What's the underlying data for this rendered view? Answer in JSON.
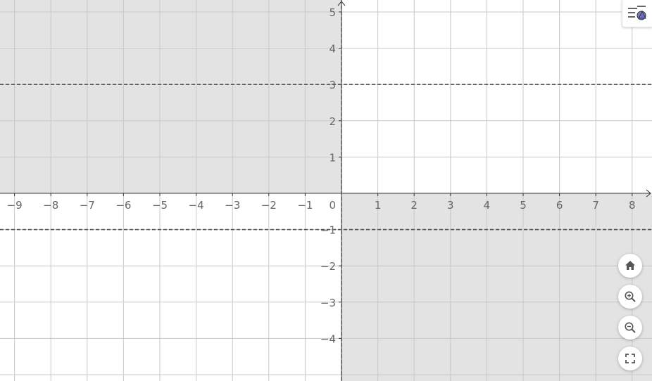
{
  "graph": {
    "x_ticks": [
      "−9",
      "−8",
      "−7",
      "−6",
      "−5",
      "−4",
      "−3",
      "−2",
      "−1",
      "1",
      "2",
      "3",
      "4",
      "5",
      "6",
      "7",
      "8"
    ],
    "x_tick_values": [
      -9,
      -8,
      -7,
      -6,
      -5,
      -4,
      -3,
      -2,
      -1,
      1,
      2,
      3,
      4,
      5,
      6,
      7,
      8
    ],
    "y_ticks": [
      "5",
      "4",
      "3",
      "2",
      "1",
      "−1",
      "−2",
      "−3",
      "−4"
    ],
    "y_tick_values": [
      5,
      4,
      3,
      2,
      1,
      -1,
      -2,
      -3,
      -4
    ],
    "origin_label": "0",
    "x_range": [
      -9.4,
      8.5
    ],
    "y_range": [
      -5.3,
      5.3
    ],
    "dashed_lines": [
      {
        "equation": "y = 3",
        "value": 3
      },
      {
        "equation": "y = -1",
        "value": -1
      },
      {
        "equation": "x = 0",
        "value": 0
      }
    ],
    "shaded_regions": [
      {
        "quadrant": "x < 0, y > 0"
      },
      {
        "quadrant": "x > 0, y < 0"
      }
    ],
    "colors": {
      "shade": "#e3e3e3",
      "grid": "#c8c8c8",
      "axis": "#333333",
      "dashed": "#555555",
      "tick_text": "#666666"
    }
  },
  "toolbar": {
    "style_bar_icon": "style-bar-icon",
    "buttons": [
      {
        "name": "home-button",
        "icon": "home-icon"
      },
      {
        "name": "zoom-in-button",
        "icon": "zoom-in-icon"
      },
      {
        "name": "zoom-out-button",
        "icon": "zoom-out-icon"
      },
      {
        "name": "fullscreen-button",
        "icon": "fullscreen-icon"
      }
    ]
  }
}
